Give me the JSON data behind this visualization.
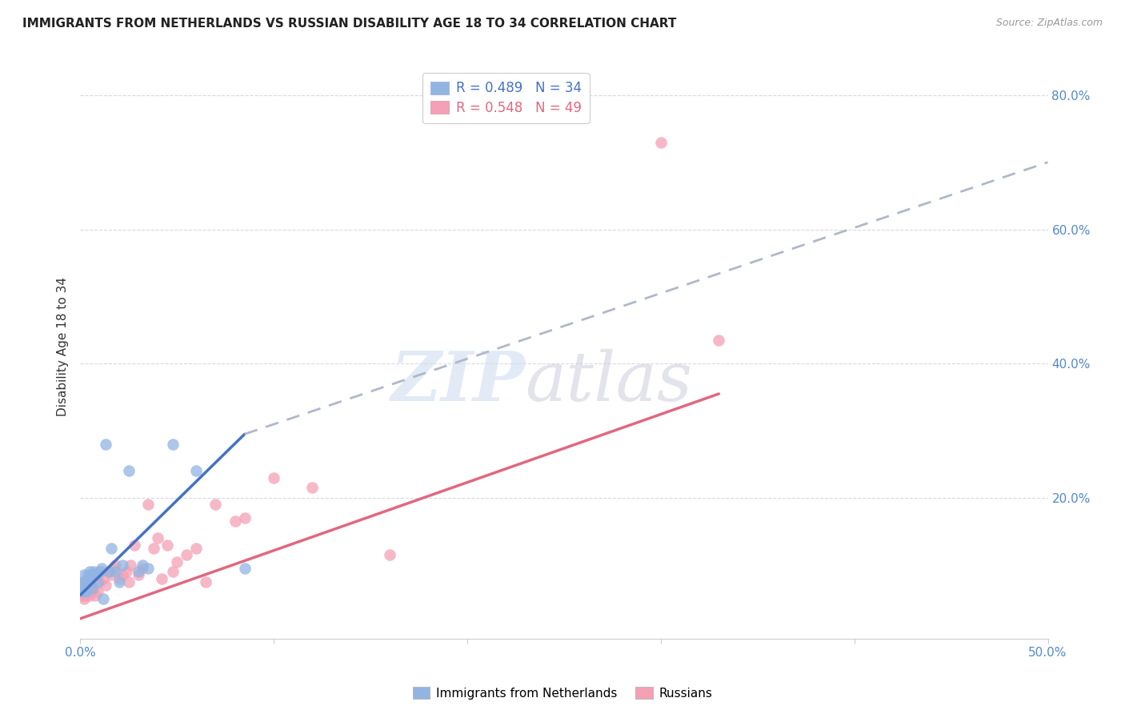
{
  "title": "IMMIGRANTS FROM NETHERLANDS VS RUSSIAN DISABILITY AGE 18 TO 34 CORRELATION CHART",
  "source": "Source: ZipAtlas.com",
  "ylabel": "Disability Age 18 to 34",
  "xlim": [
    0.0,
    0.5
  ],
  "ylim": [
    -0.01,
    0.86
  ],
  "xtick_labels": [
    "0.0%",
    "",
    "",
    "",
    "",
    "50.0%"
  ],
  "xtick_vals": [
    0.0,
    0.1,
    0.2,
    0.3,
    0.4,
    0.5
  ],
  "ytick_labels": [
    "20.0%",
    "40.0%",
    "60.0%",
    "80.0%"
  ],
  "ytick_vals": [
    0.2,
    0.4,
    0.6,
    0.8
  ],
  "netherlands_color": "#92b4e3",
  "russian_color": "#f4a0b5",
  "netherlands_line_color": "#4472c4",
  "russian_line_color": "#e06880",
  "dashed_line_color": "#b0b8c8",
  "background_color": "#ffffff",
  "watermark_zip": "ZIP",
  "watermark_atlas": "atlas",
  "nl_line_x0": 0.0,
  "nl_line_y0": 0.055,
  "nl_line_x1": 0.085,
  "nl_line_y1": 0.295,
  "ru_line_x0": 0.0,
  "ru_line_y0": 0.02,
  "ru_line_x1": 0.33,
  "ru_line_y1": 0.355,
  "dash_line_x0": 0.085,
  "dash_line_y0": 0.295,
  "dash_line_x1": 0.5,
  "dash_line_y1": 0.7,
  "netherlands_x": [
    0.001,
    0.001,
    0.001,
    0.002,
    0.002,
    0.002,
    0.003,
    0.003,
    0.003,
    0.004,
    0.004,
    0.005,
    0.005,
    0.006,
    0.006,
    0.007,
    0.008,
    0.009,
    0.01,
    0.011,
    0.012,
    0.013,
    0.015,
    0.016,
    0.018,
    0.02,
    0.022,
    0.025,
    0.03,
    0.032,
    0.035,
    0.048,
    0.06,
    0.085
  ],
  "netherlands_y": [
    0.065,
    0.07,
    0.075,
    0.06,
    0.075,
    0.085,
    0.06,
    0.07,
    0.075,
    0.08,
    0.085,
    0.075,
    0.09,
    0.065,
    0.085,
    0.09,
    0.085,
    0.075,
    0.09,
    0.095,
    0.05,
    0.28,
    0.09,
    0.125,
    0.09,
    0.075,
    0.1,
    0.24,
    0.09,
    0.1,
    0.095,
    0.28,
    0.24,
    0.095
  ],
  "russian_x": [
    0.001,
    0.001,
    0.002,
    0.002,
    0.003,
    0.003,
    0.004,
    0.004,
    0.005,
    0.005,
    0.006,
    0.006,
    0.007,
    0.008,
    0.009,
    0.01,
    0.011,
    0.012,
    0.013,
    0.015,
    0.016,
    0.017,
    0.018,
    0.02,
    0.022,
    0.024,
    0.025,
    0.026,
    0.028,
    0.03,
    0.032,
    0.035,
    0.038,
    0.04,
    0.042,
    0.045,
    0.048,
    0.05,
    0.055,
    0.06,
    0.065,
    0.07,
    0.08,
    0.085,
    0.1,
    0.12,
    0.16,
    0.3,
    0.33
  ],
  "russian_y": [
    0.055,
    0.06,
    0.05,
    0.065,
    0.055,
    0.06,
    0.06,
    0.065,
    0.055,
    0.065,
    0.06,
    0.065,
    0.065,
    0.055,
    0.06,
    0.075,
    0.09,
    0.08,
    0.07,
    0.09,
    0.085,
    0.095,
    0.1,
    0.08,
    0.085,
    0.09,
    0.075,
    0.1,
    0.13,
    0.085,
    0.095,
    0.19,
    0.125,
    0.14,
    0.08,
    0.13,
    0.09,
    0.105,
    0.115,
    0.125,
    0.075,
    0.19,
    0.165,
    0.17,
    0.23,
    0.215,
    0.115,
    0.73,
    0.435
  ]
}
